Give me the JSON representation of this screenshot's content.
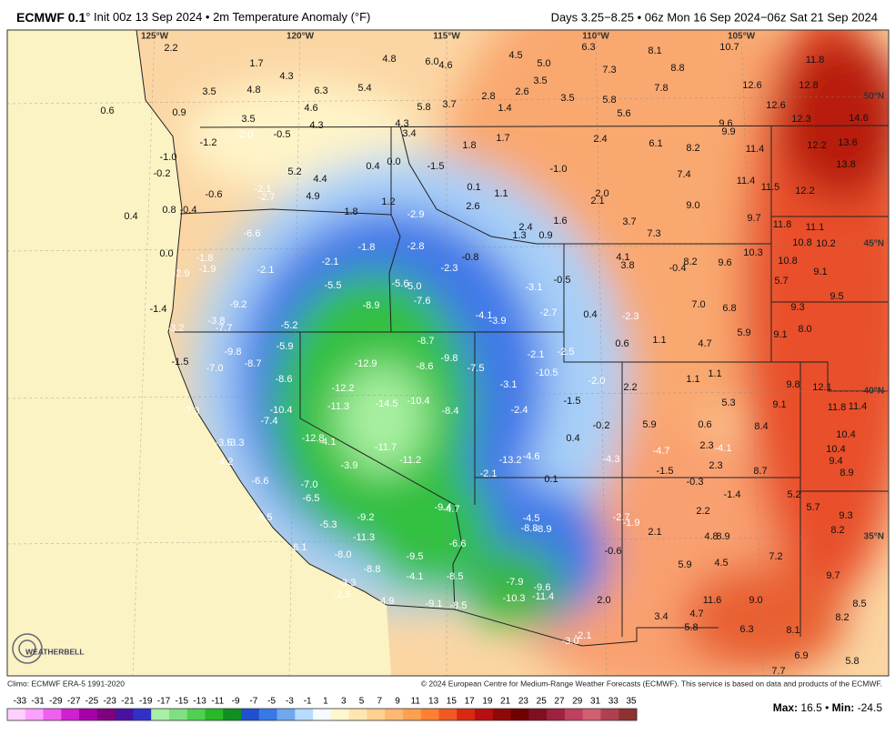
{
  "header": {
    "title": "ECMWF 0.1",
    "subtitle": "° Init 00z 13 Sep 2024 • 2m Temperature Anomaly (°F)",
    "period": "Days 3.25−8.25 • 06z Mon 16 Sep 2024−06z Sat 21 Sep 2024"
  },
  "map": {
    "longitudes": [
      "125°W",
      "120°W",
      "115°W",
      "110°W",
      "105°W"
    ],
    "latitudes": [
      "50°N",
      "45°N",
      "40°N",
      "35°N"
    ],
    "logo": "WEATHERBELL",
    "labels": [
      "2.2",
      "1.7",
      "4.8",
      "6.0",
      "4.6",
      "4.5",
      "5.0",
      "6.3",
      "8.1",
      "10.7",
      "11.8",
      "4.3",
      "7.3",
      "8.8",
      "3.5",
      "7.8",
      "12.6",
      "12.8",
      "3.5",
      "4.8",
      "6.3",
      "5.4",
      "2.8",
      "2.6",
      "3.5",
      "5.8",
      "0.6",
      "0.9",
      "4.6",
      "5.8",
      "3.7",
      "1.4",
      "5.6",
      "12.6",
      "3.5",
      "4.3",
      "4.3",
      "9.6",
      "12.3",
      "14.6",
      "-2.0",
      "-0.5",
      "3.4",
      "1.7",
      "2.4",
      "9.9",
      "-1.2",
      "1.8",
      "6.1",
      "8.2",
      "11.4",
      "12.2",
      "13.6",
      "-1.0",
      "0.4",
      "0.0",
      "-1.5",
      "-1.0",
      "13.8",
      "-0.2",
      "5.2",
      "4.4",
      "7.4",
      "11.4",
      "-0.6",
      "-2.1",
      "-2.7",
      "4.9",
      "0.1",
      "1.1",
      "2.0",
      "11.5",
      "12.2",
      "0.8",
      "-0.4",
      "1.2",
      "1.8",
      "2.6",
      "2.1",
      "9.0",
      "0.4",
      "-2.9",
      "1.6",
      "3.7",
      "9.7",
      "2.4",
      "-6.6",
      "1.3",
      "0.9",
      "7.3",
      "11.8",
      "11.1",
      "-1.8",
      "-2.8",
      "10.8",
      "10.2",
      "0.0",
      "-2.1",
      "-0.8",
      "4.1",
      "3.8",
      "8.2",
      "-0.4",
      "9.6",
      "10.3",
      "10.8",
      "-1.8",
      "-1.9",
      "-2.9",
      "-2.1",
      "-2.3",
      "9.1",
      "-5.5",
      "-5.6",
      "-5.0",
      "-0.5",
      "5.7",
      "-3.1",
      "-8.9",
      "-7.6",
      "-9.2",
      "7.0",
      "6.8",
      "9.5",
      "9.3",
      "-1.4",
      "-4.1",
      "-3.9",
      "-2.7",
      "0.4",
      "-2.3",
      "-3.8",
      "-7.7",
      "-5.2",
      "-3.2",
      "5.9",
      "8.0",
      "9.1",
      "-8.7",
      "-5.9",
      "0.6",
      "1.1",
      "4.7",
      "-9.8",
      "-9.8",
      "-2.1",
      "-2.5",
      "-1.5",
      "-7.0",
      "-8.7",
      "-12.9",
      "-8.6",
      "-7.5",
      "-10.5",
      "1.1",
      "1.1",
      "-8.6",
      "-3.1",
      "-2.0",
      "2.2",
      "9.8",
      "12.1",
      "-12.2",
      "-1.5",
      "5.3",
      "9.1",
      "11.8",
      "11.4",
      "-10.4",
      "-11.3",
      "-14.5",
      "-10.4",
      "-8.4",
      "-2.4",
      "-7.3",
      "-7.4",
      "-0.2",
      "5.9",
      "0.6",
      "8.4",
      "10.4",
      "-12.8",
      "-4.1",
      "-11.7",
      "0.4",
      "2.3",
      "-4.1",
      "10.4",
      "-3.5",
      "-3.3",
      "-11.2",
      "-13.2",
      "-4.6",
      "-4.3",
      "-4.7",
      "9.4",
      "-4.2",
      "-3.9",
      "-2.1",
      "0.1",
      "-1.5",
      "2.3",
      "8.7",
      "8.9",
      "-6.6",
      "-7.0",
      "-0.3",
      "-6.5",
      "-9.4",
      "-4.7",
      "-1.4",
      "5.2",
      "5.7",
      "-8.5",
      "-9.2",
      "-5.3",
      "-4.5",
      "-8.8",
      "-8.9",
      "-2.7",
      "-1.9",
      "2.2",
      "9.3",
      "-11.3",
      "-6.6",
      "2.1",
      "4.8",
      "8.9",
      "8.2",
      "-6.1",
      "-8.0",
      "-9.5",
      "-0.6",
      "7.2",
      "-8.8",
      "-4.1",
      "-8.5",
      "-7.9",
      "-9.6",
      "5.9",
      "4.5",
      "9.7",
      "-3.3",
      "-2.5",
      "-10.3",
      "-11.4",
      "2.0",
      "11.6",
      "9.0",
      "-4.9",
      "-9.1",
      "-8.5",
      "8.5",
      "3.4",
      "4.7",
      "8.2",
      "5.8",
      "6.3",
      "8.1",
      "-2.1",
      "-3.0",
      "6.9",
      "5.8",
      "7.7"
    ]
  },
  "footer": {
    "climo": "Climo: ECMWF ERA-5 1991-2020",
    "copyright": "© 2024 European Centre for Medium-Range Weather Forecasts (ECMWF). This service is based on data and products of the ECMWF."
  },
  "legend": {
    "labels": [
      "-33",
      "-31",
      "-29",
      "-27",
      "-25",
      "-23",
      "-21",
      "-19",
      "-17",
      "-15",
      "-13",
      "-11",
      "-9",
      "-7",
      "-5",
      "-3",
      "-1",
      "1",
      "3",
      "5",
      "7",
      "9",
      "11",
      "13",
      "15",
      "17",
      "19",
      "21",
      "23",
      "25",
      "27",
      "29",
      "31",
      "33",
      "35"
    ],
    "colors": [
      "#ffd0ff",
      "#ffa0ff",
      "#f060f0",
      "#d020d0",
      "#a800a8",
      "#800080",
      "#4a10a0",
      "#3030c8",
      "#a8f0a8",
      "#80e080",
      "#50d050",
      "#28b828",
      "#109020",
      "#2050d0",
      "#3878e8",
      "#70a8f0",
      "#b8dcff",
      "#f4faff",
      "#fff6cc",
      "#ffe6b0",
      "#ffd090",
      "#ffb870",
      "#ffa050",
      "#ff8030",
      "#f05a20",
      "#d82a10",
      "#b81010",
      "#900808",
      "#700000",
      "#801020",
      "#a02040",
      "#c04060",
      "#d06070",
      "#b04050",
      "#903030"
    ],
    "stats": {
      "max_label": "Max:",
      "max": "16.5",
      "sep": "•",
      "min_label": "Min:",
      "min": "-24.5"
    }
  }
}
